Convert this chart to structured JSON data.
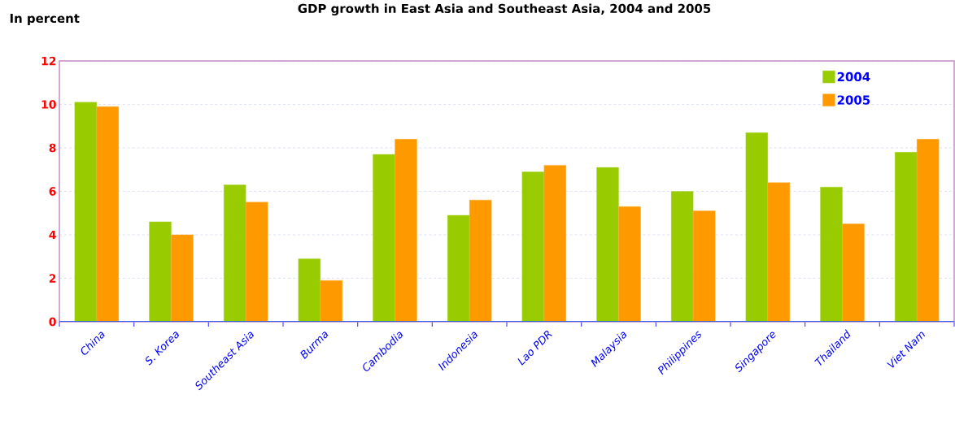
{
  "chart_data": {
    "type": "bar",
    "title": "GDP growth in East Asia and Southeast Asia, 2004 and 2005",
    "ylabel": "In percent",
    "categories": [
      "China",
      "S. Korea",
      "Southeast Asia",
      "Burma",
      "Cambodia",
      "Indonesia",
      "Lao PDR",
      "Malaysia",
      "Philippines",
      "Singapore",
      "Thailand",
      "Viet Nam"
    ],
    "series": [
      {
        "name": "2004",
        "color": "#99cc00",
        "values": [
          10.1,
          4.6,
          6.3,
          2.9,
          7.7,
          4.9,
          6.9,
          7.1,
          6.0,
          8.7,
          6.2,
          7.8
        ]
      },
      {
        "name": "2005",
        "color": "#ff9900",
        "values": [
          9.9,
          4.0,
          5.5,
          1.9,
          8.4,
          5.6,
          7.2,
          5.3,
          5.1,
          6.4,
          4.5,
          8.4
        ]
      }
    ],
    "ylim": [
      0,
      12
    ],
    "yticks": [
      0,
      2,
      4,
      6,
      8,
      10,
      12
    ],
    "grid": "y",
    "legend": "top right"
  }
}
